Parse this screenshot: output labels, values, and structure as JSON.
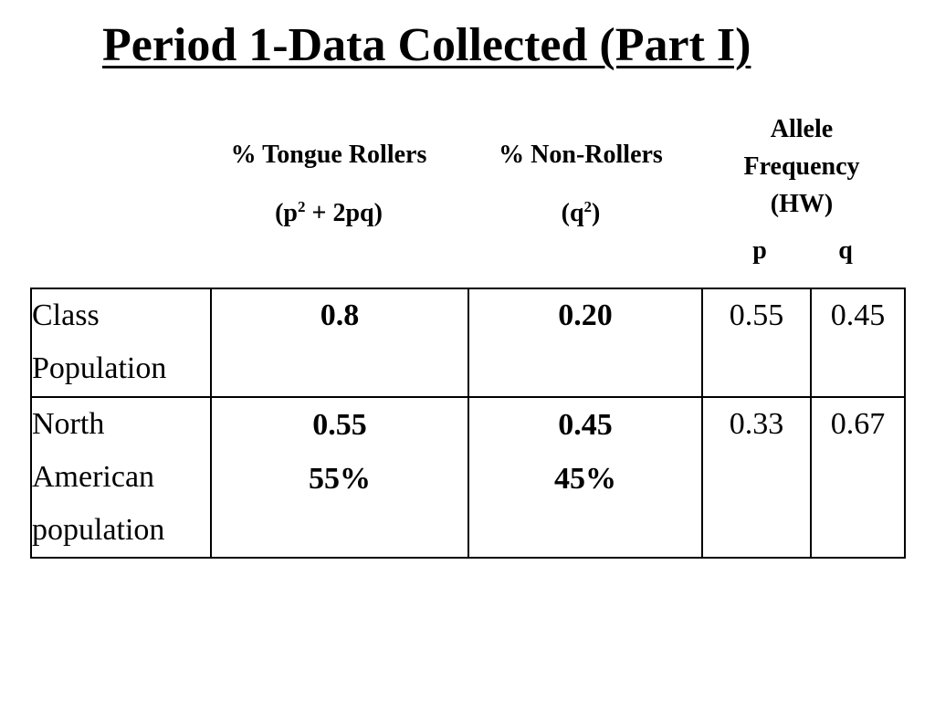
{
  "title": "Period 1-Data Collected (Part I)",
  "headers": {
    "tongue_rollers": "% Tongue Rollers",
    "tongue_formula": {
      "prefix": "(p",
      "sup": "2",
      "suffix": " + 2pq)"
    },
    "non_rollers": "% Non-Rollers",
    "non_formula": {
      "prefix": "(q",
      "sup": "2",
      "suffix": ")"
    },
    "allele_lines": [
      "Allele",
      "Frequency",
      "(HW)"
    ],
    "p": "p",
    "q": "q"
  },
  "rows": [
    {
      "label_lines": [
        "Class",
        "Population"
      ],
      "tongue_rollers": [
        "0.8"
      ],
      "non_rollers": [
        "0.20"
      ],
      "p": "0.55",
      "q": "0.45"
    },
    {
      "label_lines": [
        "North",
        "American",
        "population"
      ],
      "tongue_rollers": [
        "0.55",
        "55%"
      ],
      "non_rollers": [
        "0.45",
        "45%"
      ],
      "p": "0.33",
      "q": "0.67"
    }
  ]
}
